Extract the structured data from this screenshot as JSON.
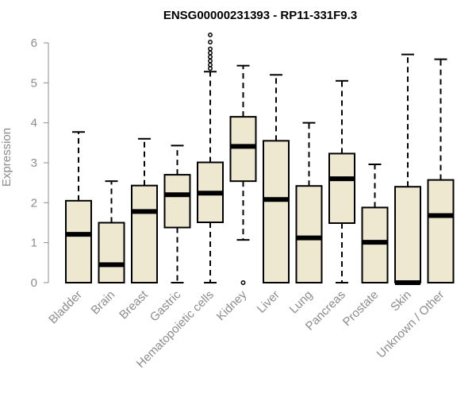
{
  "chart_data": {
    "type": "boxplot",
    "title": "ENSG00000231393 - RP11-331F9.3",
    "xlabel": "",
    "ylabel": "Expression",
    "ylim": [
      0,
      6
    ],
    "yticks": [
      0,
      1,
      2,
      3,
      4,
      5,
      6
    ],
    "grid": false,
    "box_fill": "#eee8d0",
    "box_stroke": "#000000",
    "categories": [
      "Bladder",
      "Brain",
      "Breast",
      "Gastric",
      "Hematopoietic cells",
      "Kidney",
      "Liver",
      "Lung",
      "Pancreas",
      "Prostate",
      "Skin",
      "Unknown / Other"
    ],
    "boxes": [
      {
        "name": "Bladder",
        "min": 0,
        "q1": 0,
        "median": 1.21,
        "q3": 2.05,
        "max": 3.77,
        "outliers": []
      },
      {
        "name": "Brain",
        "min": 0,
        "q1": 0,
        "median": 0.45,
        "q3": 1.5,
        "max": 2.54,
        "outliers": []
      },
      {
        "name": "Breast",
        "min": 0,
        "q1": 0,
        "median": 1.78,
        "q3": 2.43,
        "max": 3.6,
        "outliers": []
      },
      {
        "name": "Gastric",
        "min": 0,
        "q1": 1.38,
        "median": 2.2,
        "q3": 2.7,
        "max": 3.43,
        "outliers": []
      },
      {
        "name": "Hematopoietic cells",
        "min": 0,
        "q1": 1.51,
        "median": 2.24,
        "q3": 3.01,
        "max": 5.28,
        "outliers": [
          5.36,
          5.45,
          5.55,
          5.65,
          5.75,
          5.85,
          6.02,
          6.2
        ]
      },
      {
        "name": "Kidney",
        "min": 1.07,
        "q1": 2.54,
        "median": 3.41,
        "q3": 4.15,
        "max": 5.43,
        "outliers": [
          0
        ]
      },
      {
        "name": "Liver",
        "min": 0,
        "q1": 0,
        "median": 2.08,
        "q3": 3.55,
        "max": 5.2,
        "outliers": []
      },
      {
        "name": "Lung",
        "min": 0,
        "q1": 0,
        "median": 1.12,
        "q3": 2.42,
        "max": 4.0,
        "outliers": []
      },
      {
        "name": "Pancreas",
        "min": 0,
        "q1": 1.49,
        "median": 2.6,
        "q3": 3.23,
        "max": 5.05,
        "outliers": []
      },
      {
        "name": "Prostate",
        "min": 0,
        "q1": 0,
        "median": 1.01,
        "q3": 1.88,
        "max": 2.96,
        "outliers": []
      },
      {
        "name": "Skin",
        "min": 0,
        "q1": 0,
        "median": 0.0,
        "q3": 2.4,
        "max": 5.71,
        "outliers": []
      },
      {
        "name": "Unknown / Other",
        "min": 0,
        "q1": 0,
        "median": 1.68,
        "q3": 2.57,
        "max": 5.59,
        "outliers": []
      }
    ]
  }
}
